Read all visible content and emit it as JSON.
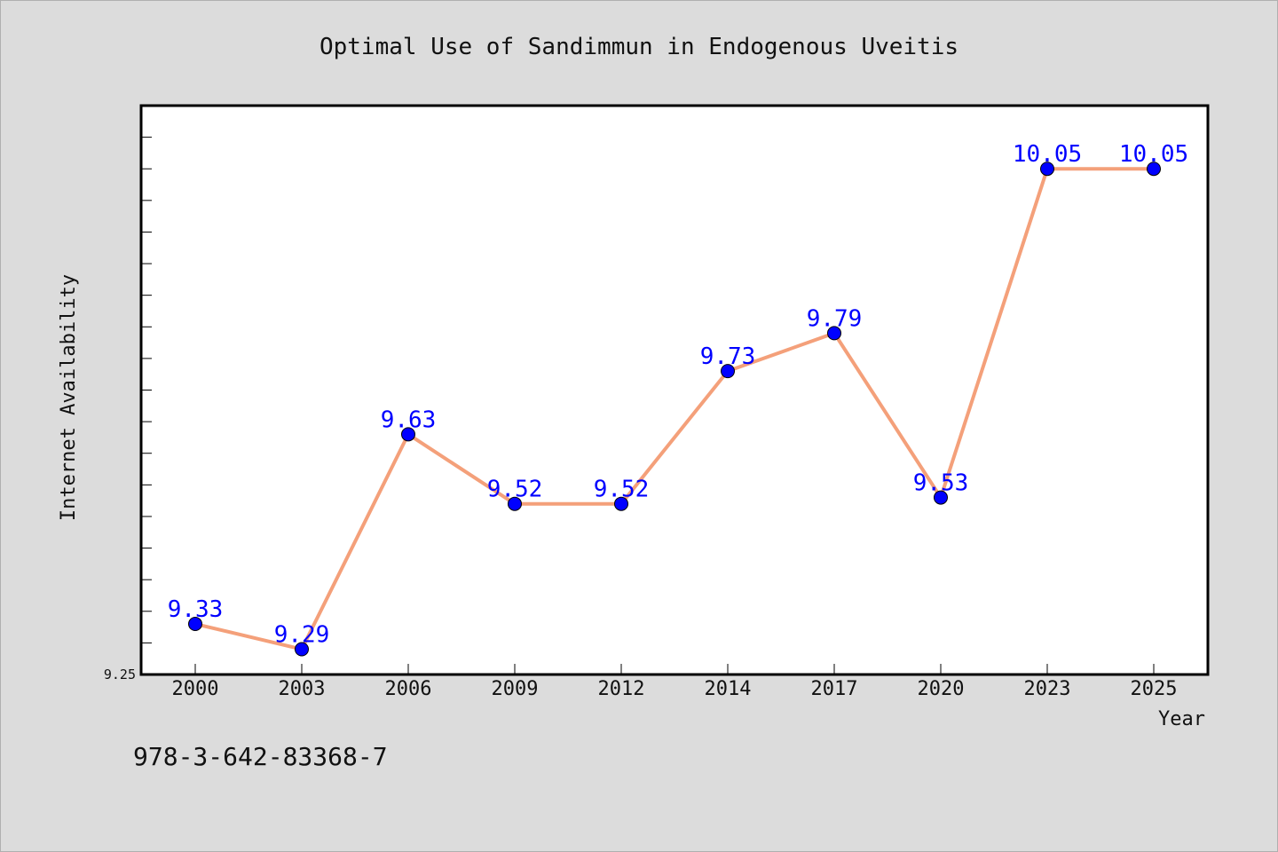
{
  "footer_code": "978-3-642-83368-7",
  "chart_data": {
    "type": "line",
    "title": "Optimal Use of Sandimmun in Endogenous Uveitis",
    "xlabel": "Year",
    "ylabel": "Internet Availability",
    "categories": [
      "2000",
      "2003",
      "2006",
      "2009",
      "2012",
      "2014",
      "2017",
      "2020",
      "2023",
      "2025"
    ],
    "series": [
      {
        "values": [
          9.33,
          9.29,
          9.63,
          9.52,
          9.52,
          9.73,
          9.79,
          9.53,
          10.05,
          10.05
        ]
      }
    ],
    "value_labels": [
      "9.33",
      "9.29",
      "9.63",
      "9.52",
      "9.52",
      "9.73",
      "9.79",
      "9.53",
      "10.05",
      "10.05"
    ],
    "ylim": [
      9.25,
      10.15
    ],
    "yticks_labeled": [
      "9.25"
    ],
    "grid": false,
    "legend": "none",
    "colors": {
      "line": "#f4a07a",
      "marker": "#0000ff",
      "data_label": "#0000ff",
      "background": "#dcdcdc",
      "plot_background": "#ffffff"
    }
  }
}
